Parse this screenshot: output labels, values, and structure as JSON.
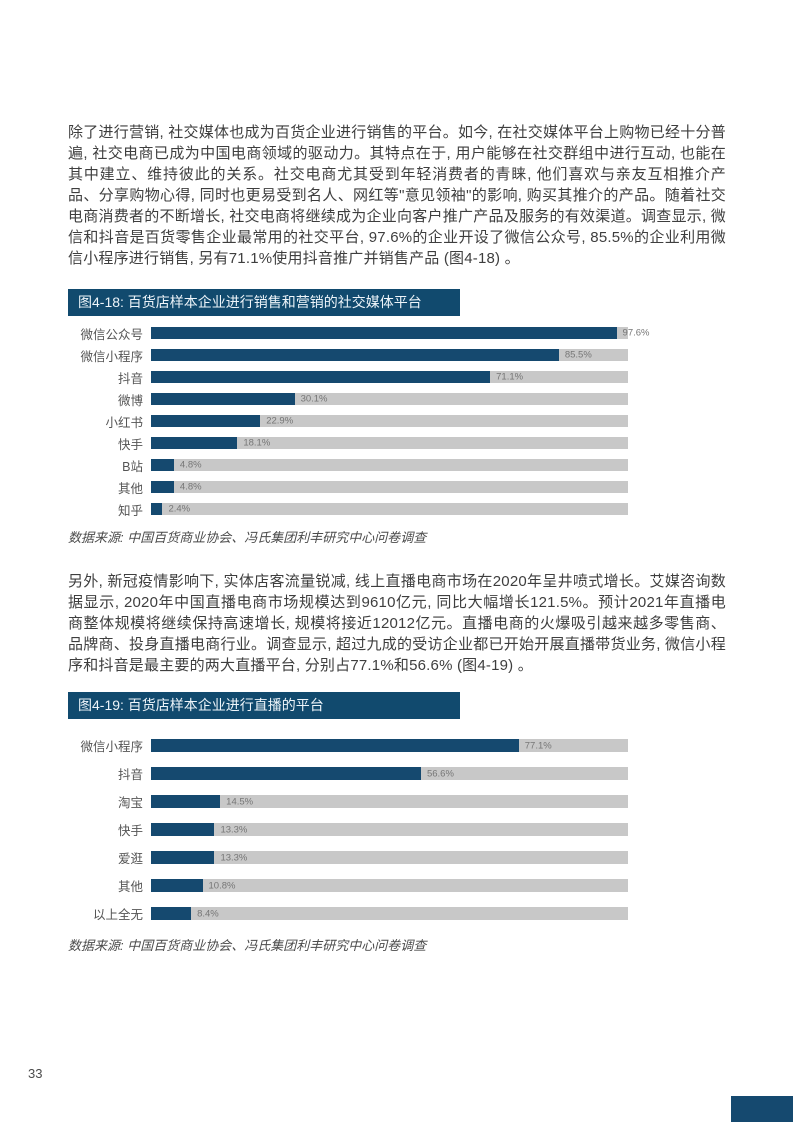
{
  "page": {
    "number": "33"
  },
  "colors": {
    "bar": "#15496F",
    "track": "#C8C8C8",
    "title_bg": "#114A6E",
    "corner": "#15496F"
  },
  "paragraphs": [
    "除了进行营销, 社交媒体也成为百货企业进行销售的平台。如今, 在社交媒体平台上购物已经十分普遍, 社交电商已成为中国电商领域的驱动力。其特点在于, 用户能够在社交群组中进行互动, 也能在其中建立、维持彼此的关系。社交电商尤其受到年轻消费者的青睐, 他们喜欢与亲友互相推介产品、分享购物心得, 同时也更易受到名人、网红等\"意见领袖\"的影响, 购买其推介的产品。随着社交电商消费者的不断增长, 社交电商将继续成为企业向客户推广产品及服务的有效渠道。调查显示, 微信和抖音是百货零售企业最常用的社交平台, 97.6%的企业开设了微信公众号, 85.5%的企业利用微信小程序进行销售, 另有71.1%使用抖音推广并销售产品 (图4-18) 。",
    "另外, 新冠疫情影响下, 实体店客流量锐减, 线上直播电商市场在2020年呈井喷式增长。艾媒咨询数据显示, 2020年中国直播电商市场规模达到9610亿元, 同比大幅增长121.5%。预计2021年直播电商整体规模将继续保持高速增长, 规模将接近12012亿元。直播电商的火爆吸引越来越多零售商、品牌商、投身直播电商行业。调查显示, 超过九成的受访企业都已开始开展直播带货业务, 微信小程序和抖音是最主要的两大直播平台, 分别占77.1%和56.6% (图4-19) 。"
  ],
  "chart_data": [
    {
      "type": "bar",
      "orientation": "horizontal",
      "title": "图4-18: 百货店样本企业进行销售和营销的社交媒体平台",
      "categories": [
        "微信公众号",
        "微信小程序",
        "抖音",
        "微博",
        "小红书",
        "快手",
        "B站",
        "其他",
        "知乎"
      ],
      "values": [
        97.6,
        85.5,
        71.1,
        30.1,
        22.9,
        18.1,
        4.8,
        4.8,
        2.4
      ],
      "labels": [
        "97.6%",
        "85.5%",
        "71.1%",
        "30.1%",
        "22.9%",
        "18.1%",
        "4.8%",
        "4.8%",
        "2.4%"
      ],
      "xlim": [
        0,
        100
      ],
      "grid": false,
      "legend": false,
      "bar_color": "#15496F",
      "track_color": "#C8C8C8",
      "source": "数据来源: 中国百货商业协会、冯氏集团利丰研究中心问卷调查"
    },
    {
      "type": "bar",
      "orientation": "horizontal",
      "title": "图4-19: 百货店样本企业进行直播的平台",
      "categories": [
        "微信小程序",
        "抖音",
        "淘宝",
        "快手",
        "爱逛",
        "其他",
        "以上全无"
      ],
      "values": [
        77.1,
        56.6,
        14.5,
        13.3,
        13.3,
        10.8,
        8.4
      ],
      "labels": [
        "77.1%",
        "56.6%",
        "14.5%",
        "13.3%",
        "13.3%",
        "10.8%",
        "8.4%"
      ],
      "xlim": [
        0,
        100
      ],
      "grid": false,
      "legend": false,
      "bar_color": "#15496F",
      "track_color": "#C8C8C8",
      "source": "数据来源: 中国百货商业协会、冯氏集团利丰研究中心问卷调查"
    }
  ]
}
